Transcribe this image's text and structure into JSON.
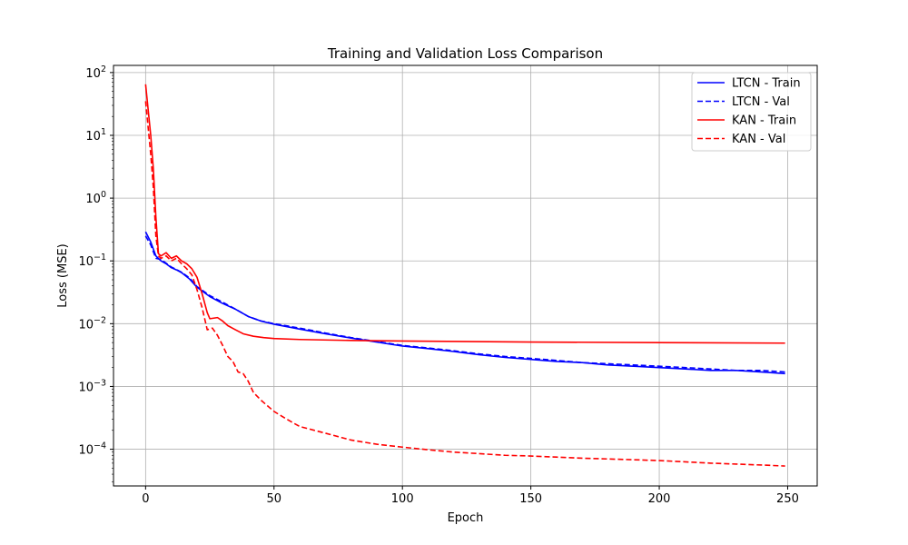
{
  "chart_data": {
    "type": "line",
    "title": "Training and Validation Loss Comparison",
    "xlabel": "Epoch",
    "ylabel": "Loss (MSE)",
    "xlim": [
      -12.5,
      261.5
    ],
    "ylim": [
      2.6e-05,
      130
    ],
    "yscale": "log",
    "grid": true,
    "legend_position": "top-right",
    "x_ticks": [
      0,
      50,
      100,
      150,
      200,
      250
    ],
    "x_tick_labels": [
      "0",
      "50",
      "100",
      "150",
      "200",
      "250"
    ],
    "y_ticks": [
      0.0001,
      0.001,
      0.01,
      0.1,
      1,
      10,
      100
    ],
    "y_tick_bases": [
      "10",
      "10",
      "10",
      "10",
      "10",
      "10",
      "10"
    ],
    "y_tick_exponents": [
      "−4",
      "−3",
      "−2",
      "−1",
      "0",
      "1",
      "2"
    ],
    "series": [
      {
        "name": "LTCN - Train",
        "color": "#0000ff",
        "style": "solid",
        "points": [
          [
            0,
            0.29
          ],
          [
            2,
            0.2
          ],
          [
            4,
            0.12
          ],
          [
            6,
            0.1
          ],
          [
            8,
            0.09
          ],
          [
            10,
            0.078
          ],
          [
            12,
            0.072
          ],
          [
            14,
            0.065
          ],
          [
            17,
            0.052
          ],
          [
            20,
            0.038
          ],
          [
            25,
            0.027
          ],
          [
            30,
            0.021
          ],
          [
            35,
            0.017
          ],
          [
            40,
            0.013
          ],
          [
            45,
            0.011
          ],
          [
            50,
            0.0098
          ],
          [
            60,
            0.0082
          ],
          [
            70,
            0.0069
          ],
          [
            80,
            0.0059
          ],
          [
            90,
            0.0051
          ],
          [
            100,
            0.0044
          ],
          [
            110,
            0.004
          ],
          [
            120,
            0.0036
          ],
          [
            130,
            0.0032
          ],
          [
            140,
            0.0029
          ],
          [
            150,
            0.0027
          ],
          [
            160,
            0.0025
          ],
          [
            170,
            0.0024
          ],
          [
            180,
            0.0022
          ],
          [
            190,
            0.0021
          ],
          [
            200,
            0.002
          ],
          [
            210,
            0.0019
          ],
          [
            220,
            0.0018
          ],
          [
            230,
            0.0018
          ],
          [
            240,
            0.0017
          ],
          [
            249,
            0.0016
          ]
        ]
      },
      {
        "name": "LTCN - Val",
        "color": "#0000ff",
        "style": "dashed",
        "points": [
          [
            0,
            0.25
          ],
          [
            2,
            0.18
          ],
          [
            4,
            0.11
          ],
          [
            6,
            0.105
          ],
          [
            8,
            0.092
          ],
          [
            10,
            0.08
          ],
          [
            12,
            0.073
          ],
          [
            14,
            0.066
          ],
          [
            17,
            0.054
          ],
          [
            20,
            0.039
          ],
          [
            25,
            0.028
          ],
          [
            30,
            0.022
          ],
          [
            35,
            0.017
          ],
          [
            40,
            0.013
          ],
          [
            45,
            0.011
          ],
          [
            50,
            0.01
          ],
          [
            60,
            0.0085
          ],
          [
            70,
            0.0071
          ],
          [
            80,
            0.006
          ],
          [
            90,
            0.0052
          ],
          [
            100,
            0.0045
          ],
          [
            110,
            0.0041
          ],
          [
            120,
            0.0037
          ],
          [
            130,
            0.0033
          ],
          [
            140,
            0.003
          ],
          [
            150,
            0.0028
          ],
          [
            160,
            0.0026
          ],
          [
            170,
            0.0024
          ],
          [
            180,
            0.0023
          ],
          [
            190,
            0.0022
          ],
          [
            200,
            0.0021
          ],
          [
            210,
            0.002
          ],
          [
            220,
            0.0019
          ],
          [
            230,
            0.0018
          ],
          [
            240,
            0.0018
          ],
          [
            249,
            0.0017
          ]
        ]
      },
      {
        "name": "KAN - Train",
        "color": "#ff0000",
        "style": "solid",
        "points": [
          [
            0,
            65
          ],
          [
            2,
            10
          ],
          [
            3,
            3
          ],
          [
            4,
            0.5
          ],
          [
            5,
            0.13
          ],
          [
            6,
            0.12
          ],
          [
            8,
            0.135
          ],
          [
            10,
            0.11
          ],
          [
            12,
            0.12
          ],
          [
            14,
            0.1
          ],
          [
            16,
            0.09
          ],
          [
            18,
            0.075
          ],
          [
            20,
            0.055
          ],
          [
            22,
            0.03
          ],
          [
            24,
            0.015
          ],
          [
            25,
            0.012
          ],
          [
            28,
            0.0125
          ],
          [
            30,
            0.011
          ],
          [
            32,
            0.0093
          ],
          [
            35,
            0.008
          ],
          [
            38,
            0.0069
          ],
          [
            42,
            0.0063
          ],
          [
            46,
            0.006
          ],
          [
            50,
            0.0058
          ],
          [
            60,
            0.0056
          ],
          [
            80,
            0.0054
          ],
          [
            100,
            0.0053
          ],
          [
            150,
            0.0051
          ],
          [
            200,
            0.005
          ],
          [
            249,
            0.0049
          ]
        ]
      },
      {
        "name": "KAN - Val",
        "color": "#ff0000",
        "style": "dashed",
        "points": [
          [
            0,
            35
          ],
          [
            2,
            5
          ],
          [
            3,
            1.5
          ],
          [
            4,
            0.25
          ],
          [
            5,
            0.12
          ],
          [
            6,
            0.11
          ],
          [
            8,
            0.12
          ],
          [
            10,
            0.1
          ],
          [
            12,
            0.11
          ],
          [
            14,
            0.09
          ],
          [
            16,
            0.075
          ],
          [
            18,
            0.06
          ],
          [
            20,
            0.035
          ],
          [
            22,
            0.018
          ],
          [
            24,
            0.008
          ],
          [
            26,
            0.0085
          ],
          [
            28,
            0.0065
          ],
          [
            30,
            0.0045
          ],
          [
            32,
            0.003
          ],
          [
            34,
            0.0025
          ],
          [
            36,
            0.0017
          ],
          [
            38,
            0.0016
          ],
          [
            40,
            0.0012
          ],
          [
            42,
            0.0008
          ],
          [
            45,
            0.0006
          ],
          [
            50,
            0.0004
          ],
          [
            55,
            0.0003
          ],
          [
            60,
            0.00023
          ],
          [
            70,
            0.00018
          ],
          [
            80,
            0.00014
          ],
          [
            90,
            0.00012
          ],
          [
            100,
            0.000108
          ],
          [
            110,
            9.8e-05
          ],
          [
            120,
            9e-05
          ],
          [
            130,
            8.5e-05
          ],
          [
            140,
            8e-05
          ],
          [
            150,
            7.8e-05
          ],
          [
            160,
            7.5e-05
          ],
          [
            170,
            7.2e-05
          ],
          [
            180,
            7e-05
          ],
          [
            190,
            6.8e-05
          ],
          [
            200,
            6.6e-05
          ],
          [
            210,
            6.3e-05
          ],
          [
            220,
            6e-05
          ],
          [
            230,
            5.8e-05
          ],
          [
            240,
            5.6e-05
          ],
          [
            249,
            5.4e-05
          ]
        ]
      }
    ]
  }
}
